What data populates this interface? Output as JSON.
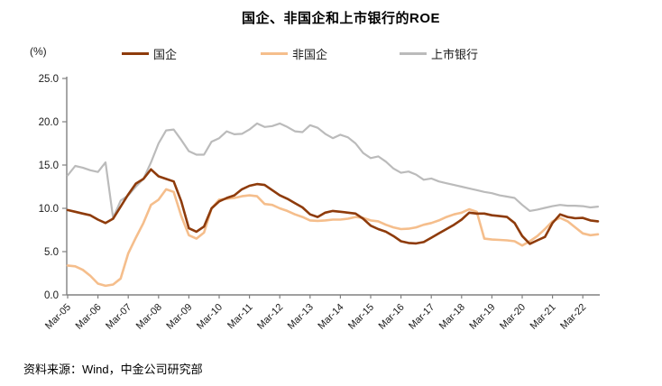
{
  "title": "国企、非国企和上市银行的ROE",
  "y_axis_unit_label": "(%)",
  "source": "资料来源：Wind，中金公司研究部",
  "colors": {
    "axis": "#808080",
    "tick_text": "#1a1a1a"
  },
  "chart_data": {
    "type": "line",
    "title": "国企、非国企和上市银行的ROE",
    "ylabel": "(%)",
    "ylim": [
      0,
      25
    ],
    "grid": false,
    "legend_position": "top",
    "x_frequency": "quarterly",
    "x_range": [
      "Mar-05",
      "Sep-22"
    ],
    "x_tick_labels": [
      "Mar-05",
      "Mar-06",
      "Mar-07",
      "Mar-08",
      "Mar-09",
      "Mar-10",
      "Mar-11",
      "Mar-12",
      "Mar-13",
      "Mar-14",
      "Mar-15",
      "Mar-16",
      "Mar-17",
      "Mar-18",
      "Mar-19",
      "Mar-20",
      "Mar-21",
      "Mar-22"
    ],
    "y_ticks": [
      0,
      5,
      10,
      15,
      20,
      25
    ],
    "y_tick_labels": [
      "0.0",
      "5.0",
      "10.0",
      "15.0",
      "20.0",
      "25.0"
    ],
    "series": [
      {
        "name": "国企",
        "key": "soe",
        "color": "#8E3B0B",
        "values": [
          9.8,
          9.6,
          9.4,
          9.2,
          8.7,
          8.3,
          8.8,
          10.2,
          11.6,
          12.85,
          13.4,
          14.5,
          13.7,
          13.4,
          13.1,
          10.8,
          7.7,
          7.3,
          7.9,
          10.0,
          10.8,
          11.2,
          11.5,
          12.2,
          12.6,
          12.8,
          12.7,
          12.1,
          11.5,
          11.1,
          10.6,
          10.1,
          9.3,
          9.0,
          9.5,
          9.7,
          9.6,
          9.5,
          9.4,
          8.8,
          8.0,
          7.6,
          7.3,
          6.8,
          6.2,
          6.0,
          5.95,
          6.1,
          6.6,
          7.1,
          7.6,
          8.1,
          8.7,
          9.5,
          9.4,
          9.4,
          9.2,
          9.1,
          9.0,
          8.3,
          6.8,
          5.9,
          6.3,
          6.7,
          8.3,
          9.3,
          9.0,
          8.85,
          8.9,
          8.6,
          8.5
        ]
      },
      {
        "name": "非国企",
        "key": "non-soe",
        "color": "#F5BE8C",
        "values": [
          3.4,
          3.3,
          2.9,
          2.2,
          1.3,
          1.05,
          1.2,
          1.9,
          4.8,
          6.6,
          8.3,
          10.4,
          11.0,
          12.2,
          11.9,
          9.1,
          6.9,
          6.5,
          7.2,
          10.0,
          11.0,
          11.1,
          11.2,
          11.4,
          11.5,
          11.4,
          10.5,
          10.4,
          10.0,
          9.7,
          9.3,
          9.0,
          8.6,
          8.55,
          8.6,
          8.7,
          8.7,
          8.8,
          9.0,
          8.9,
          8.6,
          8.5,
          8.1,
          7.8,
          7.6,
          7.65,
          7.8,
          8.1,
          8.3,
          8.6,
          9.0,
          9.3,
          9.5,
          9.9,
          9.6,
          6.5,
          6.4,
          6.35,
          6.3,
          6.2,
          5.7,
          6.2,
          6.8,
          7.6,
          8.5,
          8.9,
          8.5,
          7.8,
          7.1,
          6.9,
          7.0
        ]
      },
      {
        "name": "上市银行",
        "key": "listed-banks",
        "color": "#BBBBBB",
        "values": [
          13.8,
          14.9,
          14.7,
          14.4,
          14.2,
          15.3,
          8.9,
          10.9,
          11.5,
          12.5,
          13.4,
          15.3,
          17.5,
          19.0,
          19.1,
          17.9,
          16.6,
          16.2,
          16.2,
          17.7,
          18.1,
          18.9,
          18.55,
          18.6,
          19.1,
          19.8,
          19.4,
          19.5,
          19.8,
          19.4,
          18.9,
          18.8,
          19.6,
          19.3,
          18.6,
          18.1,
          18.5,
          18.2,
          17.5,
          16.4,
          15.8,
          16.0,
          15.4,
          14.6,
          14.1,
          14.25,
          13.9,
          13.3,
          13.45,
          13.1,
          12.9,
          12.7,
          12.5,
          12.3,
          12.1,
          11.9,
          11.75,
          11.5,
          11.35,
          11.2,
          10.4,
          9.7,
          9.85,
          10.05,
          10.25,
          10.4,
          10.3,
          10.3,
          10.25,
          10.1,
          10.2
        ]
      }
    ]
  }
}
